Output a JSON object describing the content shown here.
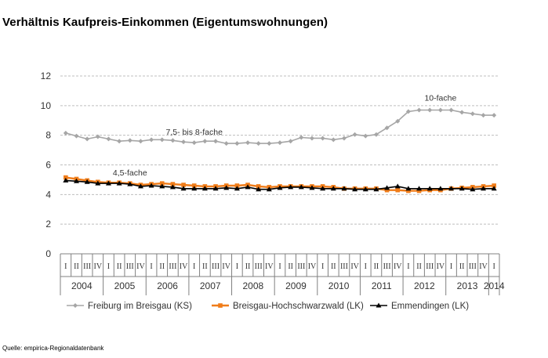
{
  "title": "Verhältnis Kaufpreis-Einkommen (Eigentumswohnungen)",
  "source": "Quelle: empirica-Regionaldatenbank",
  "chart_data": {
    "type": "line",
    "ylim": [
      0,
      12
    ],
    "yticks": [
      0,
      2,
      4,
      6,
      8,
      10,
      12
    ],
    "grid": "horizontal dashed",
    "legend_position": "bottom",
    "quarter_labels": [
      "I",
      "II",
      "III",
      "IV"
    ],
    "years": [
      "2004",
      "2005",
      "2006",
      "2007",
      "2008",
      "2009",
      "2010",
      "2011",
      "2012",
      "2013",
      "2014"
    ],
    "n_quarters": 41,
    "series": [
      {
        "name": "Freiburg im Breisgau (KS)",
        "color": "#a6a6a6",
        "marker": "diamond",
        "values": [
          8.15,
          7.95,
          7.75,
          7.9,
          7.75,
          7.6,
          7.65,
          7.6,
          7.7,
          7.7,
          7.65,
          7.55,
          7.5,
          7.6,
          7.6,
          7.45,
          7.45,
          7.5,
          7.45,
          7.45,
          7.5,
          7.6,
          7.85,
          7.8,
          7.8,
          7.7,
          7.8,
          8.05,
          7.95,
          8.05,
          8.5,
          8.95,
          9.6,
          9.7,
          9.7,
          9.7,
          9.7,
          9.55,
          9.45,
          9.35,
          9.35
        ]
      },
      {
        "name": "Breisgau-Hochschwarzwald (LK)",
        "color": "#f07d1a",
        "marker": "square",
        "values": [
          5.15,
          5.05,
          4.95,
          4.85,
          4.8,
          4.8,
          4.75,
          4.65,
          4.7,
          4.75,
          4.7,
          4.65,
          4.6,
          4.55,
          4.55,
          4.6,
          4.6,
          4.65,
          4.55,
          4.5,
          4.55,
          4.55,
          4.55,
          4.55,
          4.55,
          4.5,
          4.4,
          4.4,
          4.4,
          4.4,
          4.3,
          4.3,
          4.25,
          4.25,
          4.3,
          4.3,
          4.4,
          4.45,
          4.5,
          4.55,
          4.6
        ]
      },
      {
        "name": "Emmendingen (LK)",
        "color": "#000000",
        "marker": "triangle",
        "values": [
          4.95,
          4.9,
          4.85,
          4.75,
          4.75,
          4.75,
          4.7,
          4.55,
          4.6,
          4.55,
          4.5,
          4.4,
          4.4,
          4.4,
          4.4,
          4.45,
          4.4,
          4.5,
          4.35,
          4.35,
          4.45,
          4.5,
          4.5,
          4.45,
          4.4,
          4.4,
          4.4,
          4.35,
          4.35,
          4.35,
          4.45,
          4.55,
          4.4,
          4.4,
          4.4,
          4.4,
          4.4,
          4.4,
          4.35,
          4.4,
          4.4
        ]
      }
    ],
    "annotations": [
      {
        "text": "10-fache",
        "series": 0,
        "index": 35
      },
      {
        "text": "7,5- bis 8-fache",
        "series": 0,
        "index": 12
      },
      {
        "text": "4,5-fache",
        "series": 1,
        "index": 6
      }
    ]
  }
}
